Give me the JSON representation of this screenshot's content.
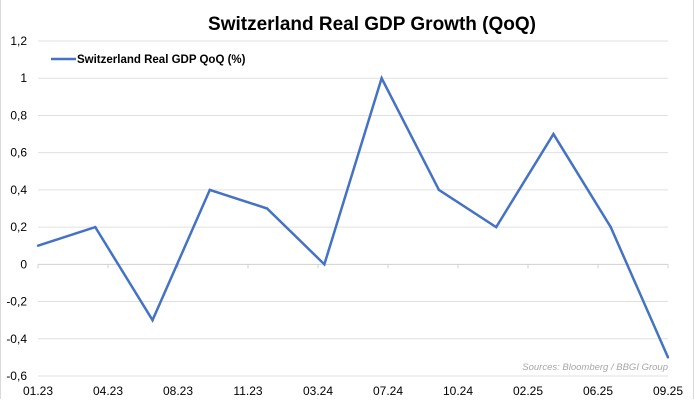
{
  "chart_data": {
    "type": "line",
    "title": "Switzerland Real GDP Growth (QoQ)",
    "xlabel": "",
    "ylabel": "",
    "x_tick_labels": [
      "01.23",
      "04.23",
      "08.23",
      "11.23",
      "03.24",
      "07.24",
      "10.24",
      "02.25",
      "06.25",
      "09.25"
    ],
    "y_tick_labels": [
      "1,2",
      "1",
      "0,8",
      "0,6",
      "0,4",
      "0,2",
      "0",
      "-0,2",
      "-0,4",
      "-0,6"
    ],
    "y_ticks": [
      1.2,
      1.0,
      0.8,
      0.6,
      0.4,
      0.2,
      0,
      -0.2,
      -0.4,
      -0.6
    ],
    "ylim": [
      -0.6,
      1.2
    ],
    "grid": true,
    "legend_position": "top-left",
    "series": [
      {
        "name": "Switzerland Real GDP QoQ (%)",
        "color": "#4472c4",
        "values": [
          0.1,
          0.2,
          -0.3,
          0.4,
          0.3,
          0.0,
          1.0,
          0.4,
          0.2,
          0.7,
          0.2,
          -0.5
        ]
      }
    ],
    "source": "Sources: Bloomberg / BBGI Group"
  }
}
